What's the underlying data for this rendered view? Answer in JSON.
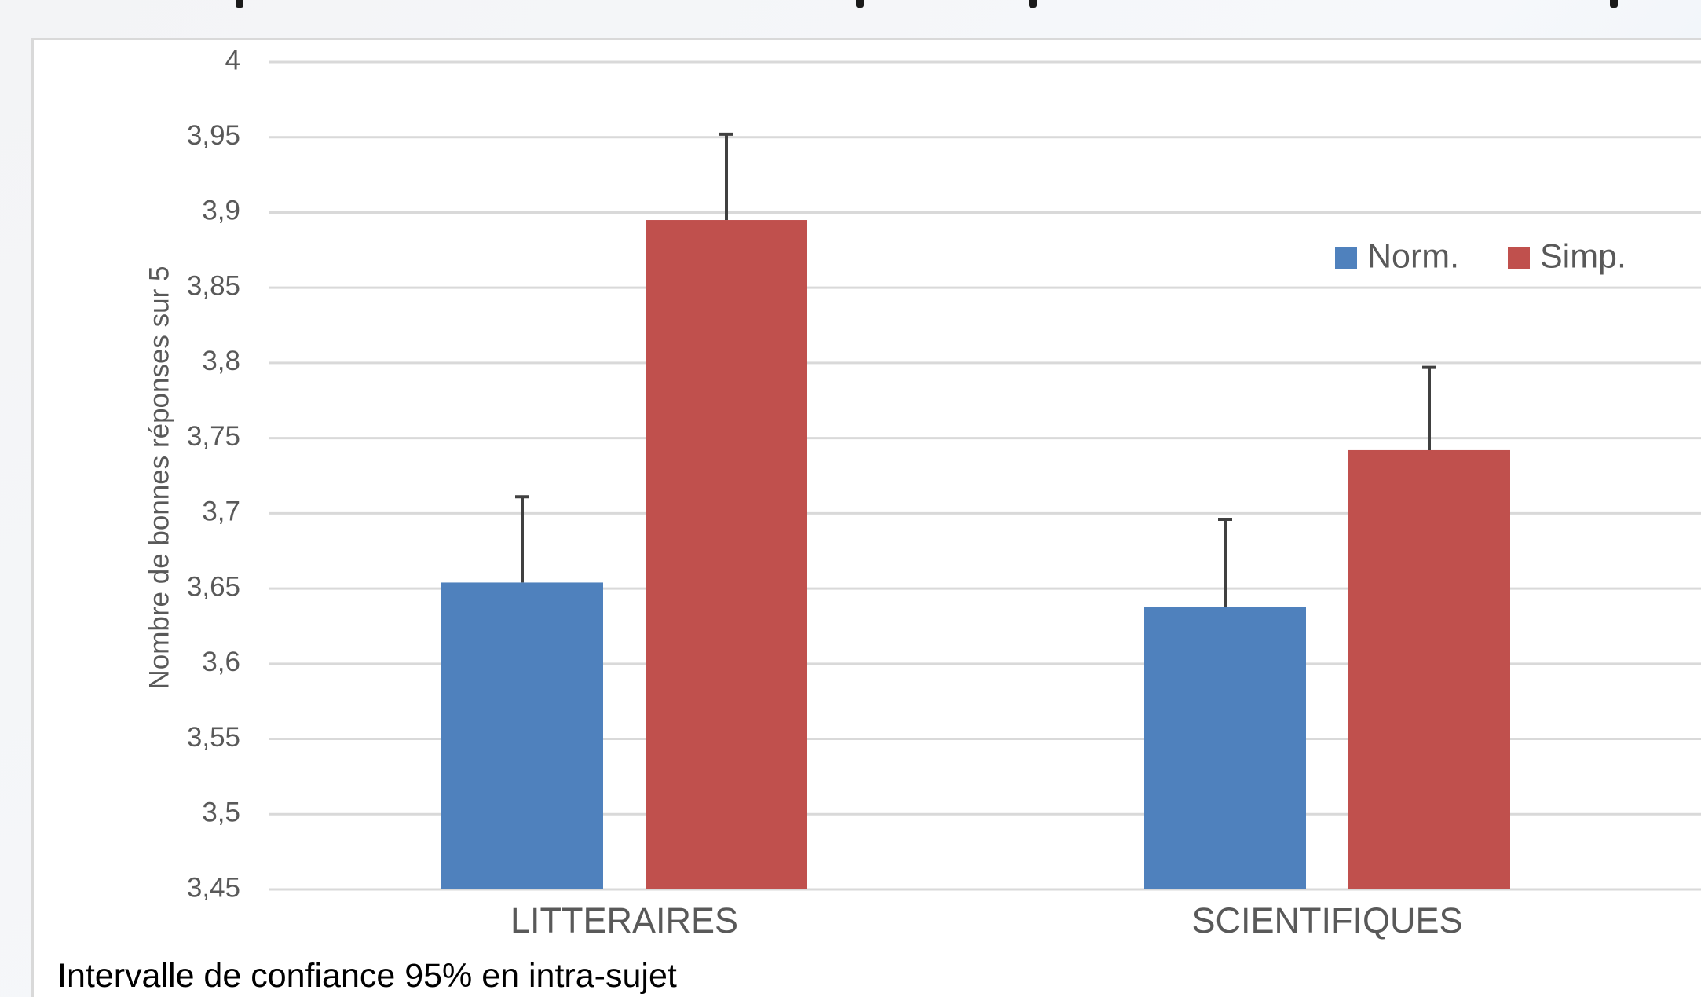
{
  "chart_data": {
    "type": "bar",
    "title": "",
    "xlabel": "",
    "ylabel": "Nombre de bonnes réponses sur 5",
    "categories": [
      "LITTERAIRES",
      "SCIENTIFIQUES"
    ],
    "series": [
      {
        "name": "Norm.",
        "color": "#4f81bd",
        "values": [
          3.654,
          3.638
        ],
        "error_upper": [
          0.057,
          0.058
        ]
      },
      {
        "name": "Simp.",
        "color": "#c0504d",
        "values": [
          3.895,
          3.742
        ],
        "error_upper": [
          0.057,
          0.055
        ]
      }
    ],
    "ylim": [
      3.45,
      4
    ],
    "yticks": [
      3.45,
      3.5,
      3.55,
      3.6,
      3.65,
      3.7,
      3.75,
      3.8,
      3.85,
      3.9,
      3.95,
      4
    ],
    "ytick_labels": [
      "3,45",
      "3,5",
      "3,55",
      "3,6",
      "3,65",
      "3,7",
      "3,75",
      "3,8",
      "3,85",
      "3,9",
      "3,95",
      "4"
    ],
    "grid": true,
    "legend_position": "top-right",
    "error_bar_color": "#404040"
  },
  "note": "Intervalle de confiance 95% en intra-sujet"
}
